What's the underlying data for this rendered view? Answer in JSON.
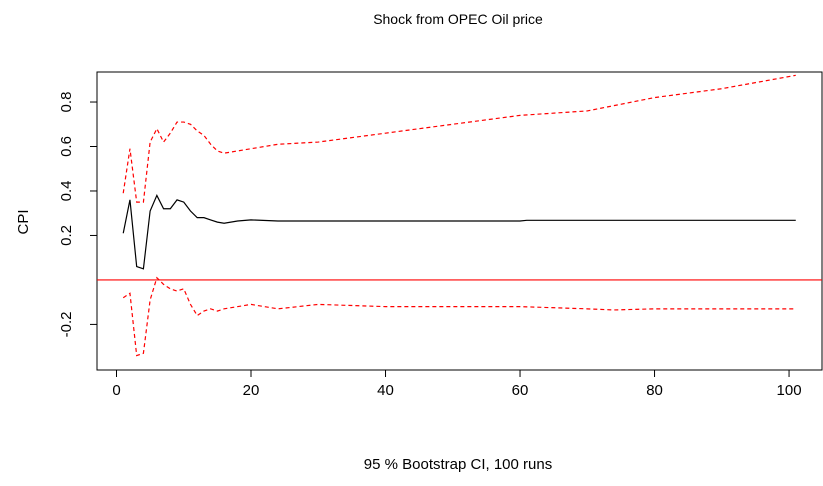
{
  "chart_data": {
    "type": "line",
    "title": "Shock from OPEC Oil price",
    "xlabel": "95 % Bootstrap CI,  100 runs",
    "ylabel": "CPI",
    "xlim": [
      -2.9,
      104.9
    ],
    "ylim": [
      -0.405,
      0.935
    ],
    "x_ticks": [
      0,
      20,
      40,
      60,
      80,
      100
    ],
    "y_ticks": [
      -0.2,
      0.2,
      0.4,
      0.6,
      0.8
    ],
    "x_tick_labels": [
      "0",
      "20",
      "40",
      "60",
      "80",
      "100"
    ],
    "y_tick_labels": [
      "-0.2",
      "0.2",
      "0.4",
      "0.6",
      "0.8"
    ],
    "reference_line": {
      "y": 0,
      "color": "#ff0000"
    },
    "grid": false,
    "series": [
      {
        "role": "response",
        "color": "#000000",
        "style": "solid",
        "points": [
          [
            1,
            0.21
          ],
          [
            2,
            0.36
          ],
          [
            3,
            0.06
          ],
          [
            4,
            0.05
          ],
          [
            5,
            0.31
          ],
          [
            6,
            0.38
          ],
          [
            7,
            0.32
          ],
          [
            8,
            0.32
          ],
          [
            9,
            0.36
          ],
          [
            10,
            0.35
          ],
          [
            11,
            0.31
          ],
          [
            12,
            0.28
          ],
          [
            13,
            0.28
          ],
          [
            14,
            0.27
          ],
          [
            15,
            0.26
          ],
          [
            16,
            0.255
          ],
          [
            18,
            0.265
          ],
          [
            20,
            0.27
          ],
          [
            24,
            0.265
          ],
          [
            30,
            0.265
          ],
          [
            40,
            0.265
          ],
          [
            50,
            0.265
          ],
          [
            60,
            0.265
          ],
          [
            61,
            0.268
          ],
          [
            70,
            0.268
          ],
          [
            80,
            0.268
          ],
          [
            90,
            0.268
          ],
          [
            101,
            0.268
          ]
        ]
      },
      {
        "role": "upper_ci",
        "color": "#ff0000",
        "style": "dashed",
        "points": [
          [
            1,
            0.39
          ],
          [
            2,
            0.59
          ],
          [
            3,
            0.35
          ],
          [
            4,
            0.35
          ],
          [
            5,
            0.62
          ],
          [
            6,
            0.68
          ],
          [
            7,
            0.62
          ],
          [
            8,
            0.66
          ],
          [
            9,
            0.71
          ],
          [
            10,
            0.71
          ],
          [
            11,
            0.7
          ],
          [
            12,
            0.67
          ],
          [
            13,
            0.65
          ],
          [
            14,
            0.61
          ],
          [
            15,
            0.58
          ],
          [
            16,
            0.57
          ],
          [
            20,
            0.59
          ],
          [
            24,
            0.61
          ],
          [
            30,
            0.62
          ],
          [
            40,
            0.66
          ],
          [
            50,
            0.7
          ],
          [
            60,
            0.74
          ],
          [
            70,
            0.76
          ],
          [
            80,
            0.82
          ],
          [
            90,
            0.86
          ],
          [
            101,
            0.92
          ]
        ]
      },
      {
        "role": "lower_ci",
        "color": "#ff0000",
        "style": "dashed",
        "points": [
          [
            1,
            -0.08
          ],
          [
            2,
            -0.06
          ],
          [
            3,
            -0.34
          ],
          [
            4,
            -0.33
          ],
          [
            5,
            -0.09
          ],
          [
            6,
            0.01
          ],
          [
            7,
            -0.02
          ],
          [
            8,
            -0.04
          ],
          [
            9,
            -0.05
          ],
          [
            10,
            -0.04
          ],
          [
            11,
            -0.11
          ],
          [
            12,
            -0.16
          ],
          [
            13,
            -0.14
          ],
          [
            14,
            -0.13
          ],
          [
            15,
            -0.14
          ],
          [
            16,
            -0.13
          ],
          [
            20,
            -0.11
          ],
          [
            24,
            -0.13
          ],
          [
            30,
            -0.11
          ],
          [
            40,
            -0.12
          ],
          [
            50,
            -0.12
          ],
          [
            60,
            -0.12
          ],
          [
            70,
            -0.13
          ],
          [
            74,
            -0.135
          ],
          [
            80,
            -0.13
          ],
          [
            90,
            -0.13
          ],
          [
            101,
            -0.13
          ]
        ]
      }
    ]
  }
}
